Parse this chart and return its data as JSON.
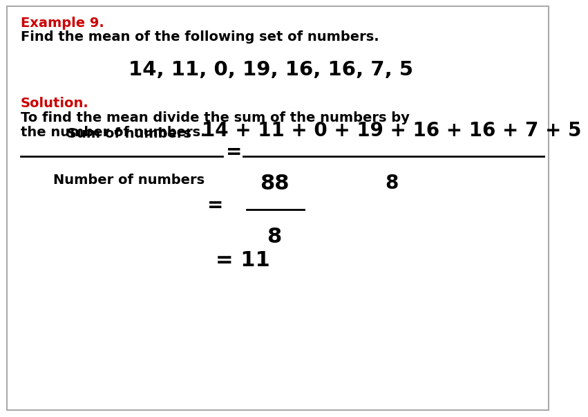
{
  "background_color": "#ffffff",
  "border_color": "#aaaaaa",
  "example_label": "Example 9.",
  "example_label_color": "#cc0000",
  "problem_text": "Find the mean of the following set of numbers.",
  "numbers_display": "14, 11, 0, 19, 16, 16, 7, 5",
  "solution_label": "Solution.",
  "solution_label_color": "#cc0000",
  "solution_text_line1": "To find the mean divide the sum of the numbers by",
  "solution_text_line2": "the number of numbers.",
  "fraction_left_numerator": "Sum of numbers",
  "fraction_left_denominator": "Number of numbers",
  "fraction_right_numerator": "14 + 11 + 0 + 19 + 16 + 16 + 7 + 5",
  "fraction_right_denominator": "8",
  "step2_numerator": "88",
  "step2_denominator": "8",
  "step3_result": "11",
  "font_family": "DejaVu Sans"
}
